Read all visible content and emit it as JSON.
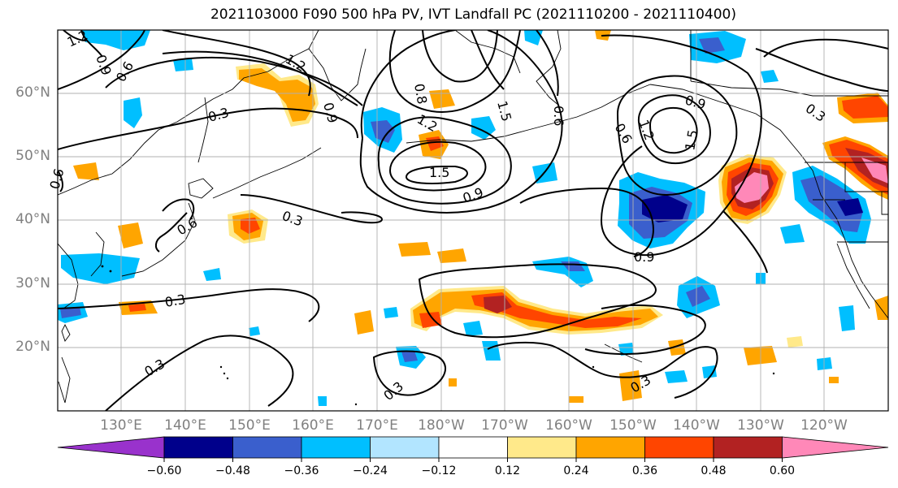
{
  "title": "2021103000 F090 500 hPa PV, IVT Landfall PC (2021110200 - 2021110400)",
  "lat_labels": [
    "60°N",
    "50°N",
    "40°N",
    "30°N",
    "20°N"
  ],
  "lon_labels": [
    "130°E",
    "140°E",
    "150°E",
    "160°E",
    "170°E",
    "180°W",
    "170°W",
    "160°W",
    "150°W",
    "140°W",
    "130°W",
    "120°W"
  ],
  "colorbar": {
    "ticks": [
      "−0.60",
      "−0.48",
      "−0.36",
      "−0.24",
      "−0.12",
      "0.12",
      "0.24",
      "0.36",
      "0.48",
      "0.60"
    ],
    "colors": [
      "#9932cc",
      "#00008b",
      "#3a5fcd",
      "#00bfff",
      "#b2e5ff",
      "#ffffff",
      "#ffe98a",
      "#ffa500",
      "#ff4500",
      "#b22222",
      "#ff88b8"
    ]
  },
  "contour_labels": [
    "1.2",
    "0.9",
    "0.6",
    "1.2",
    "0.3",
    "0.9",
    "1.5",
    "0.8",
    "1.2",
    "1.5",
    "0.9",
    "0.6",
    "0.9",
    "1.2",
    "1.5",
    "0.6",
    "0.3",
    "0.3",
    "0.6",
    "0.6",
    "0.9",
    "0.3",
    "0.3",
    "0.3",
    "0.3"
  ]
}
